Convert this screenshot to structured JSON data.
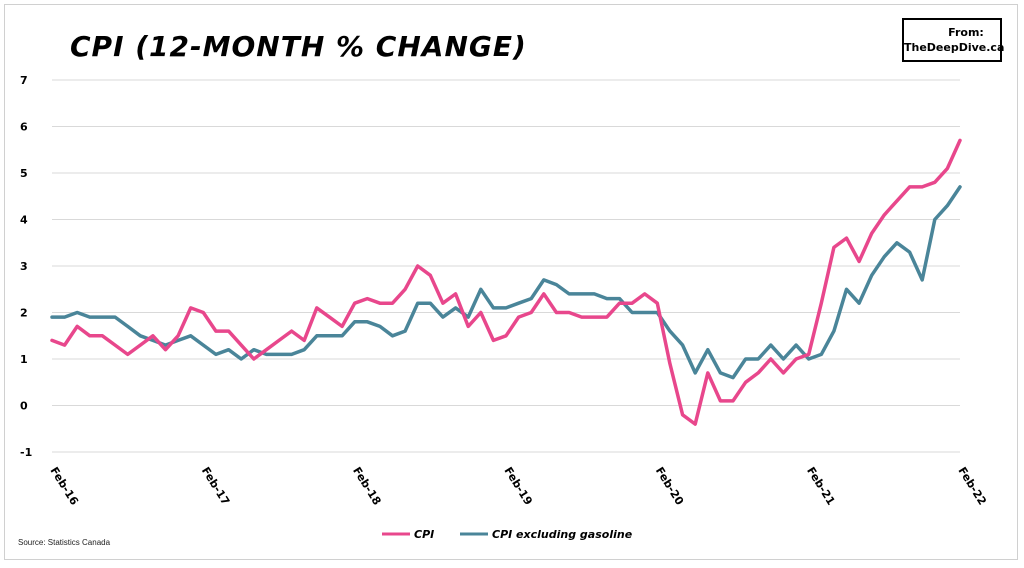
{
  "header": {
    "title": "CPI (12-MONTH % CHANGE)",
    "badge_line1": "From:",
    "badge_line2": "TheDeepDive.ca"
  },
  "footer": {
    "source": "Source: Statistics Canada"
  },
  "colors": {
    "cpi": "#e8478c",
    "cpi_ex_gas": "#4a8599",
    "grid": "#d9d9d9"
  },
  "chart_data": {
    "type": "line",
    "title": "CPI (12-MONTH % CHANGE)",
    "ylim": [
      -1,
      7
    ],
    "yticks": [
      -1,
      0,
      1,
      2,
      3,
      4,
      5,
      6,
      7
    ],
    "x_tick_labels": [
      "Feb-16",
      "Feb-17",
      "Feb-18",
      "Feb-19",
      "Feb-20",
      "Feb-21",
      "Feb-22"
    ],
    "x_tick_index": [
      0,
      12,
      24,
      36,
      48,
      60,
      72
    ],
    "grid": true,
    "legend_position": "bottom",
    "series": [
      {
        "name": "CPI",
        "values": [
          1.4,
          1.3,
          1.7,
          1.5,
          1.5,
          1.3,
          1.1,
          1.3,
          1.5,
          1.2,
          1.5,
          2.1,
          2.0,
          1.6,
          1.6,
          1.3,
          1.0,
          1.2,
          1.4,
          1.6,
          1.4,
          2.1,
          1.9,
          1.7,
          2.2,
          2.3,
          2.2,
          2.2,
          2.5,
          3.0,
          2.8,
          2.2,
          2.4,
          1.7,
          2.0,
          1.4,
          1.5,
          1.9,
          2.0,
          2.4,
          2.0,
          2.0,
          1.9,
          1.9,
          1.9,
          2.2,
          2.2,
          2.4,
          2.2,
          0.9,
          -0.2,
          -0.4,
          0.7,
          0.1,
          0.1,
          0.5,
          0.7,
          1.0,
          0.7,
          1.0,
          1.1,
          2.2,
          3.4,
          3.6,
          3.1,
          3.7,
          4.1,
          4.4,
          4.7,
          4.7,
          4.8,
          5.1,
          5.7
        ]
      },
      {
        "name": "CPI excluding gasoline",
        "values": [
          1.9,
          1.9,
          2.0,
          1.9,
          1.9,
          1.9,
          1.7,
          1.5,
          1.4,
          1.3,
          1.4,
          1.5,
          1.3,
          1.1,
          1.2,
          1.0,
          1.2,
          1.1,
          1.1,
          1.1,
          1.2,
          1.5,
          1.5,
          1.5,
          1.8,
          1.8,
          1.7,
          1.5,
          1.6,
          2.2,
          2.2,
          1.9,
          2.1,
          1.9,
          2.5,
          2.1,
          2.1,
          2.2,
          2.3,
          2.7,
          2.6,
          2.4,
          2.4,
          2.4,
          2.3,
          2.3,
          2.0,
          2.0,
          2.0,
          1.6,
          1.3,
          0.7,
          1.2,
          0.7,
          0.6,
          1.0,
          1.0,
          1.3,
          1.0,
          1.3,
          1.0,
          1.1,
          1.6,
          2.5,
          2.2,
          2.8,
          3.2,
          3.5,
          3.3,
          2.7,
          4.0,
          4.3,
          4.7
        ]
      }
    ]
  }
}
